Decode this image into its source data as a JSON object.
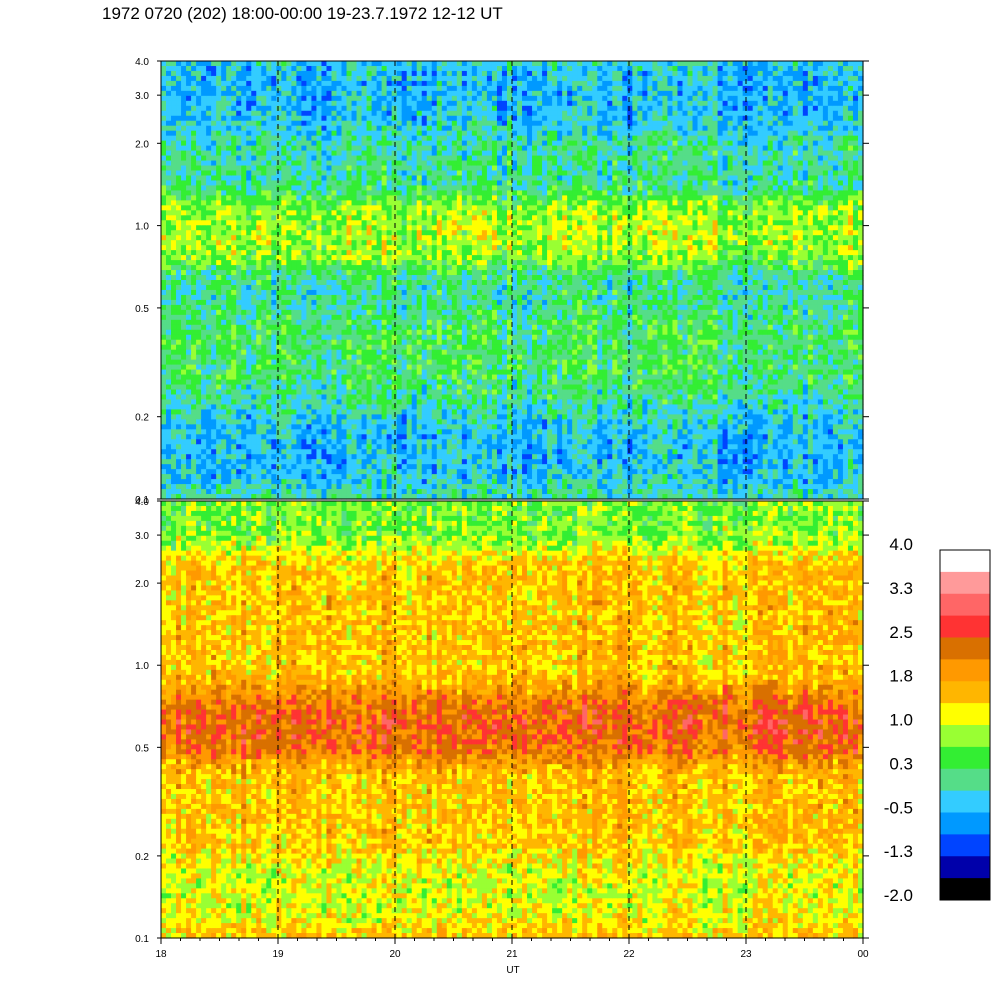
{
  "title": "1972 0720 (202) 18:00-00:00 19-23.7.1972  12-12 UT",
  "chart_data": {
    "type": "heatmap",
    "title": "1972 0720 (202) 18:00-00:00 19-23.7.1972  12-12 UT",
    "xlabel": "UT",
    "x_ticks": [
      "18",
      "19",
      "20",
      "21",
      "22",
      "23",
      "00"
    ],
    "x_range": [
      18,
      24
    ],
    "y_scale": "log",
    "y_range": [
      0.1,
      4.0
    ],
    "y_ticks": [
      "0.1",
      "0.2",
      "0.5",
      "1.0",
      "2.0",
      "3.0",
      "4.0"
    ],
    "grid": "dashed vertical lines at each hour",
    "panels": [
      {
        "name": "upper",
        "background_level": 0.0,
        "features": [
          {
            "y": 0.95,
            "level": 1.0,
            "desc": "band"
          },
          {
            "y": 0.35,
            "level": 0.3,
            "desc": "band"
          },
          {
            "y": 0.15,
            "level": -0.5,
            "desc": "low region"
          },
          {
            "y": 3.0,
            "level": -0.5,
            "desc": "top region"
          }
        ]
      },
      {
        "name": "lower",
        "background_level": 1.5,
        "features": [
          {
            "y": 0.6,
            "level": 2.5,
            "desc": "band"
          },
          {
            "y": 0.15,
            "level": 1.0,
            "desc": "low region"
          },
          {
            "y": 3.5,
            "level": 0.5,
            "desc": "top region"
          }
        ]
      }
    ],
    "colorbar": {
      "labels": [
        "4.0",
        "3.3",
        "2.5",
        "1.8",
        "1.0",
        "0.3",
        "-0.5",
        "-1.3",
        "-2.0"
      ],
      "colors": [
        "#ffffff",
        "#ff9a9a",
        "#ff6666",
        "#ff3333",
        "#d97000",
        "#ff9900",
        "#ffb600",
        "#ffff00",
        "#99ff33",
        "#33ee33",
        "#55dd88",
        "#33ccff",
        "#0099ff",
        "#0044ff",
        "#0000aa",
        "#000000"
      ]
    }
  }
}
